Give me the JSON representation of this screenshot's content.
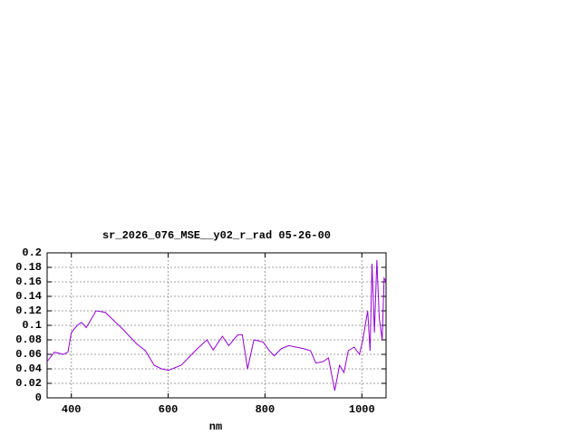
{
  "chart_data": {
    "type": "line",
    "title": "sr_2026_076_MSE__y02_r_rad 05-26-00",
    "x_label": "nm",
    "x": [
      350,
      365,
      384,
      393,
      400,
      412,
      421,
      431,
      451,
      470,
      487,
      506,
      534,
      553,
      571,
      586,
      601,
      627,
      656,
      680,
      693,
      712,
      725,
      744,
      753,
      764,
      777,
      796,
      809,
      819,
      834,
      849,
      864,
      879,
      894,
      905,
      920,
      931,
      944,
      954,
      963,
      972,
      984,
      995,
      1002,
      1012,
      1017,
      1021,
      1026,
      1031,
      1036,
      1042,
      1046,
      1050
    ],
    "values": [
      0.05,
      0.063,
      0.06,
      0.063,
      0.09,
      0.1,
      0.104,
      0.097,
      0.12,
      0.118,
      0.107,
      0.095,
      0.075,
      0.065,
      0.045,
      0.04,
      0.038,
      0.045,
      0.065,
      0.08,
      0.066,
      0.085,
      0.072,
      0.087,
      0.087,
      0.04,
      0.08,
      0.077,
      0.065,
      0.058,
      0.068,
      0.072,
      0.07,
      0.068,
      0.065,
      0.048,
      0.05,
      0.055,
      0.01,
      0.045,
      0.035,
      0.065,
      0.07,
      0.06,
      0.08,
      0.12,
      0.065,
      0.185,
      0.09,
      0.19,
      0.11,
      0.08,
      0.165,
      0.16
    ],
    "color": "#9400d3",
    "xlim": [
      350,
      1050
    ],
    "xticks": [
      400,
      600,
      800,
      1000
    ],
    "ylim": [
      0,
      0.2
    ],
    "yticks": [
      0,
      0.02,
      0.04,
      0.06,
      0.08,
      0.1,
      0.12,
      0.14,
      0.16,
      0.18,
      0.2
    ],
    "grid": true
  }
}
